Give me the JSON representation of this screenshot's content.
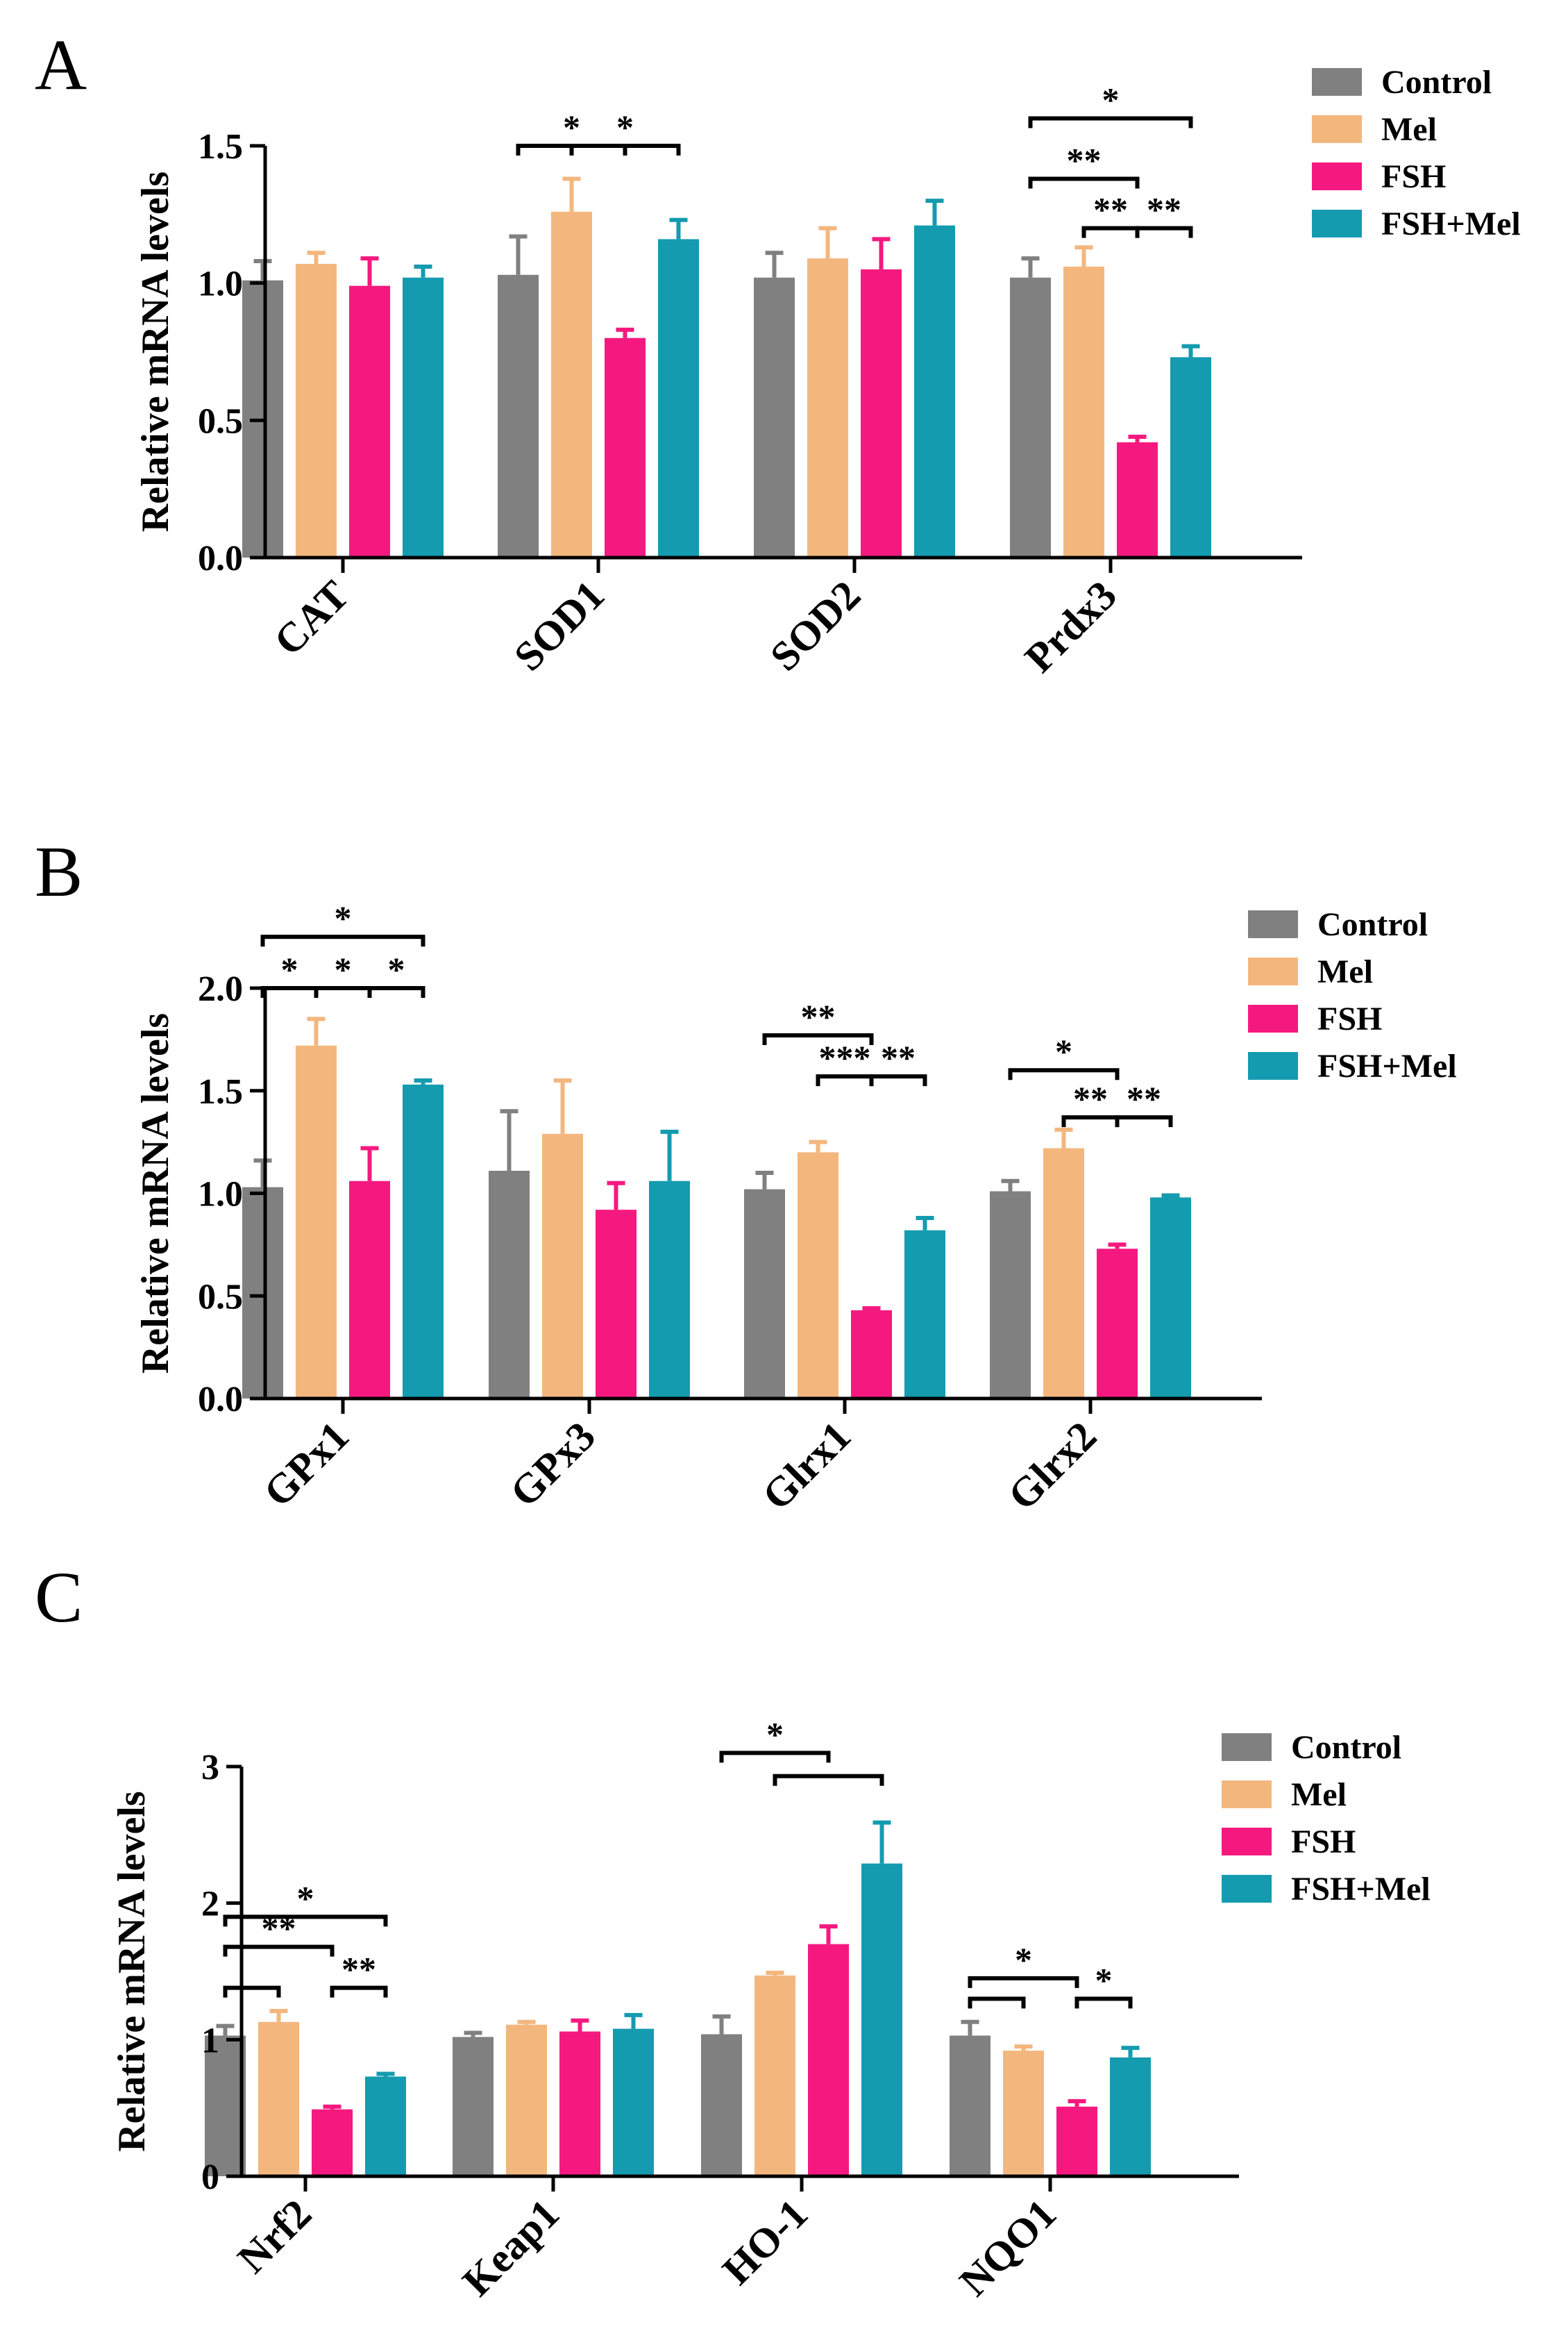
{
  "colors": {
    "series": [
      "#808080",
      "#F3B77E",
      "#F5197F",
      "#149BB0"
    ],
    "axis": "#000000"
  },
  "chart_data": [
    {
      "type": "bar",
      "panel_label": "A",
      "ylabel": "Relative mRNA levels",
      "ylim": [
        0,
        1.5
      ],
      "ticks": [
        0,
        0.5,
        1.0,
        1.5
      ],
      "tick_labels": [
        "0.0",
        "0.5",
        "1.0",
        "1.5"
      ],
      "categories": [
        "CAT",
        "SOD1",
        "SOD2",
        "Prdx3"
      ],
      "legend_position": "top-right",
      "series": [
        {
          "name": "Control",
          "values": [
            1.01,
            1.03,
            1.02,
            1.02
          ],
          "errors": [
            0.07,
            0.14,
            0.09,
            0.07
          ]
        },
        {
          "name": "Mel",
          "values": [
            1.07,
            1.26,
            1.09,
            1.06
          ],
          "errors": [
            0.04,
            0.12,
            0.11,
            0.07
          ]
        },
        {
          "name": "FSH",
          "values": [
            0.99,
            0.8,
            1.05,
            0.42
          ],
          "errors": [
            0.1,
            0.03,
            0.11,
            0.02
          ]
        },
        {
          "name": "FSH+Mel",
          "values": [
            1.02,
            1.16,
            1.21,
            0.73
          ],
          "errors": [
            0.04,
            0.07,
            0.09,
            0.04
          ]
        }
      ],
      "significance": [
        {
          "text": "*",
          "category": 1,
          "from": 0,
          "to": 2,
          "level": 1.5
        },
        {
          "text": "*",
          "category": 1,
          "from": 1,
          "to": 3,
          "level": 1.5
        },
        {
          "text": "*",
          "category": 3,
          "from": 0,
          "to": 3,
          "level": 1.6
        },
        {
          "text": "**",
          "category": 3,
          "from": 0,
          "to": 2,
          "level": 1.38
        },
        {
          "text": "**",
          "category": 3,
          "from": 1,
          "to": 2,
          "level": 1.2
        },
        {
          "text": "**",
          "category": 3,
          "from": 2,
          "to": 3,
          "level": 1.2
        }
      ]
    },
    {
      "type": "bar",
      "panel_label": "B",
      "ylabel": "Relative mRNA levels",
      "ylim": [
        0,
        2.0
      ],
      "ticks": [
        0,
        0.5,
        1.0,
        1.5,
        2.0
      ],
      "tick_labels": [
        "0.0",
        "0.5",
        "1.0",
        "1.5",
        "2.0"
      ],
      "categories": [
        "GPx1",
        "GPx3",
        "Glrx1",
        "Glrx2"
      ],
      "legend_position": "top-right",
      "series": [
        {
          "name": "Control",
          "values": [
            1.03,
            1.11,
            1.02,
            1.01
          ],
          "errors": [
            0.13,
            0.29,
            0.08,
            0.05
          ]
        },
        {
          "name": "Mel",
          "values": [
            1.72,
            1.29,
            1.2,
            1.22
          ],
          "errors": [
            0.13,
            0.26,
            0.05,
            0.09
          ]
        },
        {
          "name": "FSH",
          "values": [
            1.06,
            0.92,
            0.43,
            0.73
          ],
          "errors": [
            0.16,
            0.13,
            0.01,
            0.02
          ]
        },
        {
          "name": "FSH+Mel",
          "values": [
            1.53,
            1.06,
            0.82,
            0.98
          ],
          "errors": [
            0.02,
            0.24,
            0.06,
            0.01
          ]
        }
      ],
      "significance": [
        {
          "text": "*",
          "category": 0,
          "from": 0,
          "to": 3,
          "level": 2.25
        },
        {
          "text": "*",
          "category": 0,
          "from": 0,
          "to": 1,
          "level": 2.0
        },
        {
          "text": "*",
          "category": 0,
          "from": 1,
          "to": 2,
          "level": 2.0
        },
        {
          "text": "*",
          "category": 0,
          "from": 2,
          "to": 3,
          "level": 2.0
        },
        {
          "text": "**",
          "category": 2,
          "from": 0,
          "to": 2,
          "level": 1.77
        },
        {
          "text": "***",
          "category": 2,
          "from": 1,
          "to": 2,
          "level": 1.57
        },
        {
          "text": "**",
          "category": 2,
          "from": 2,
          "to": 3,
          "level": 1.57
        },
        {
          "text": "*",
          "category": 3,
          "from": 0,
          "to": 2,
          "level": 1.6
        },
        {
          "text": "**",
          "category": 3,
          "from": 1,
          "to": 2,
          "level": 1.37
        },
        {
          "text": "**",
          "category": 3,
          "from": 2,
          "to": 3,
          "level": 1.37
        }
      ]
    },
    {
      "type": "bar",
      "panel_label": "C",
      "ylabel": "Relative mRNA levels",
      "ylim": [
        0,
        3
      ],
      "ticks": [
        0,
        1,
        2,
        3
      ],
      "tick_labels": [
        "0",
        "1",
        "2",
        "3"
      ],
      "categories": [
        "Nrf2",
        "Keap1",
        "HO-1",
        "NQO1"
      ],
      "legend_position": "top-right",
      "series": [
        {
          "name": "Control",
          "values": [
            1.03,
            1.02,
            1.04,
            1.03
          ],
          "errors": [
            0.07,
            0.03,
            0.13,
            0.1
          ]
        },
        {
          "name": "Mel",
          "values": [
            1.13,
            1.11,
            1.47,
            0.92
          ],
          "errors": [
            0.08,
            0.02,
            0.02,
            0.03
          ]
        },
        {
          "name": "FSH",
          "values": [
            0.49,
            1.06,
            1.7,
            0.51
          ],
          "errors": [
            0.02,
            0.08,
            0.13,
            0.04
          ]
        },
        {
          "name": "FSH+Mel",
          "values": [
            0.73,
            1.08,
            2.29,
            0.87
          ],
          "errors": [
            0.02,
            0.1,
            0.3,
            0.07
          ]
        }
      ],
      "significance": [
        {
          "text": "*",
          "category": 0,
          "from": 0,
          "to": 3,
          "level": 1.9
        },
        {
          "text": "**",
          "category": 0,
          "from": 0,
          "to": 2,
          "level": 1.68
        },
        {
          "text": "",
          "category": 0,
          "from": 0,
          "to": 1,
          "level": 1.38
        },
        {
          "text": "**",
          "category": 0,
          "from": 2,
          "to": 3,
          "level": 1.38
        },
        {
          "text": "*",
          "category": 2,
          "from": 0,
          "to": 2,
          "level": 3.1
        },
        {
          "text": "",
          "category": 2,
          "from": 1,
          "to": 3,
          "level": 2.93
        },
        {
          "text": "*",
          "category": 3,
          "from": 0,
          "to": 2,
          "level": 1.45
        },
        {
          "text": "",
          "category": 3,
          "from": 0,
          "to": 1,
          "level": 1.3
        },
        {
          "text": "*",
          "category": 3,
          "from": 2,
          "to": 3,
          "level": 1.3
        }
      ]
    }
  ]
}
